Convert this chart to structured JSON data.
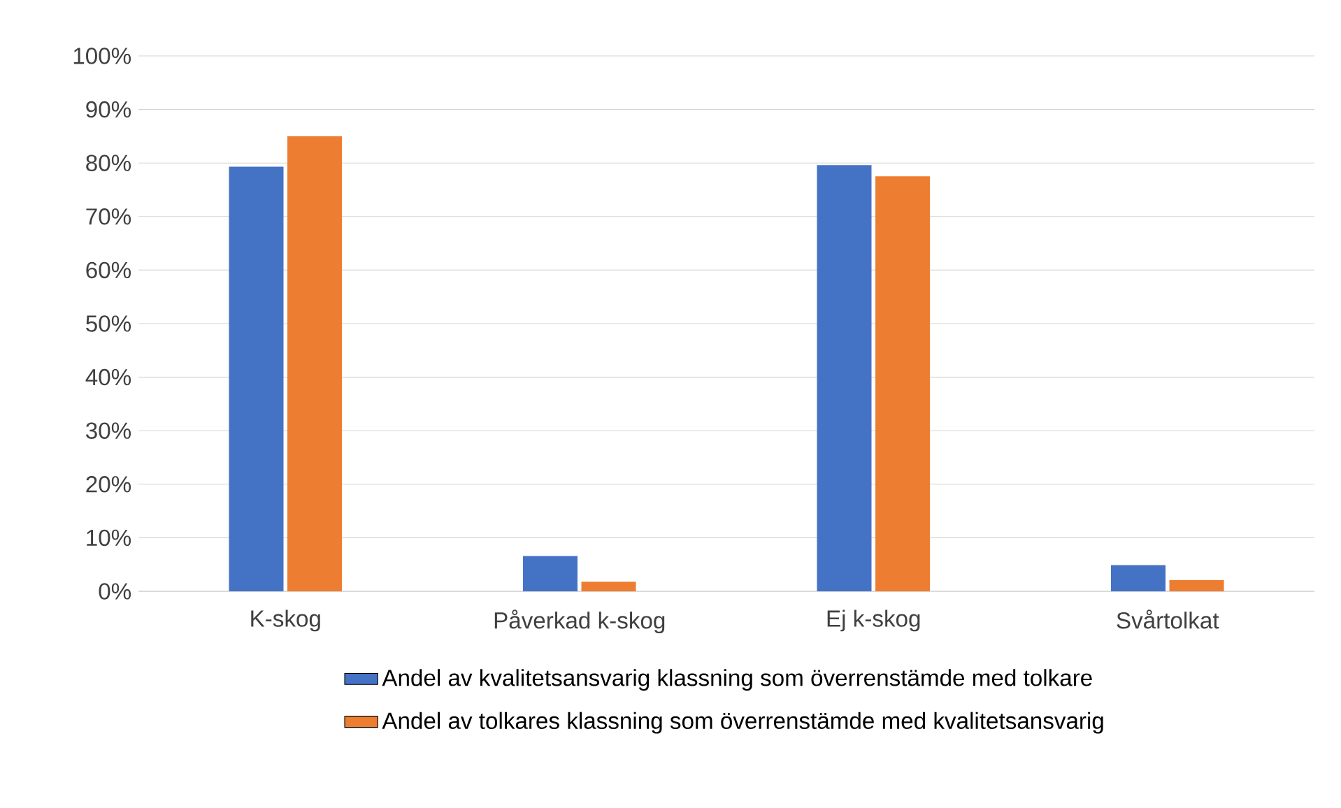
{
  "chart_data": {
    "type": "bar",
    "categories": [
      "K-skog",
      "Påverkad k-skog",
      "Ej k-skog",
      "Svårtolkat"
    ],
    "series": [
      {
        "name": "Andel av kvalitetsansvarig klassning som överrenstämde med  tolkare",
        "color": "#4472c4",
        "values": [
          79.3,
          6.6,
          79.6,
          4.9
        ]
      },
      {
        "name": "Andel av tolkares  klassning som överrenstämde med  kvalitetsansvarig",
        "color": "#ed7d31",
        "values": [
          85.0,
          1.8,
          77.5,
          2.1
        ]
      }
    ],
    "ylim": [
      0,
      100
    ],
    "yticks": [
      {
        "value": 0,
        "label": "0%"
      },
      {
        "value": 10,
        "label": "10%"
      },
      {
        "value": 20,
        "label": "20%"
      },
      {
        "value": 30,
        "label": "30%"
      },
      {
        "value": 40,
        "label": "40%"
      },
      {
        "value": 50,
        "label": "50%"
      },
      {
        "value": 60,
        "label": "60%"
      },
      {
        "value": 70,
        "label": "70%"
      },
      {
        "value": 80,
        "label": "80%"
      },
      {
        "value": 90,
        "label": "90%"
      },
      {
        "value": 100,
        "label": "100%"
      }
    ],
    "grid": "y",
    "legend": "bottom"
  }
}
